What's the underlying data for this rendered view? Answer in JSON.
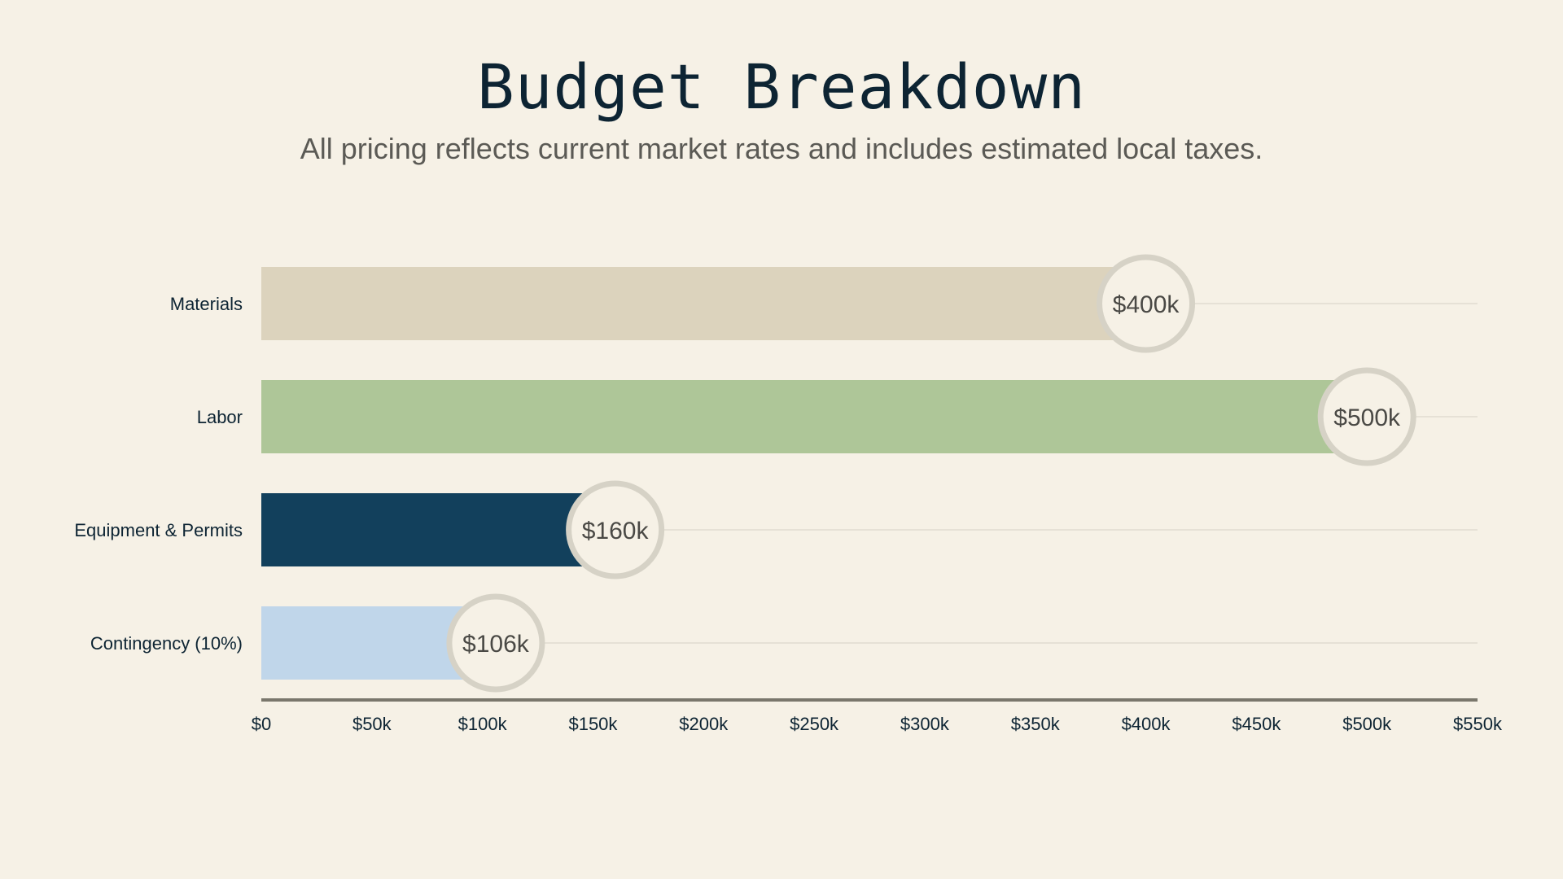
{
  "header": {
    "title": "Budget Breakdown",
    "subtitle": "All pricing reflects current market rates and includes estimated local taxes."
  },
  "colors": {
    "background": "#f6f1e6",
    "gridline": "#dcd8cc",
    "axis": "#7a776c",
    "badge_fill": "#f6f1e6",
    "badge_ring": "#d6d2c6"
  },
  "chart_data": {
    "type": "bar",
    "orientation": "horizontal",
    "title": "Budget Breakdown",
    "subtitle": "All pricing reflects current market rates and includes estimated local taxes.",
    "xlabel": "",
    "ylabel": "",
    "categories": [
      "Materials",
      "Labor",
      "Equipment & Permits",
      "Contingency (10%)"
    ],
    "values": [
      400000,
      500000,
      160000,
      106000
    ],
    "value_labels": [
      "$400k",
      "$500k",
      "$160k",
      "$106k"
    ],
    "bar_colors": [
      "#dcd3bd",
      "#aec698",
      "#12405c",
      "#c0d6ea"
    ],
    "xlim": [
      0,
      550000
    ],
    "xticks": [
      0,
      50000,
      100000,
      150000,
      200000,
      250000,
      300000,
      350000,
      400000,
      450000,
      500000,
      550000
    ],
    "xtick_labels": [
      "$0",
      "$50k",
      "$100k",
      "$150k",
      "$200k",
      "$250k",
      "$300k",
      "$350k",
      "$400k",
      "$450k",
      "$500k",
      "$550k"
    ],
    "grid": "horizontal guide lines per category",
    "legend": "none"
  }
}
